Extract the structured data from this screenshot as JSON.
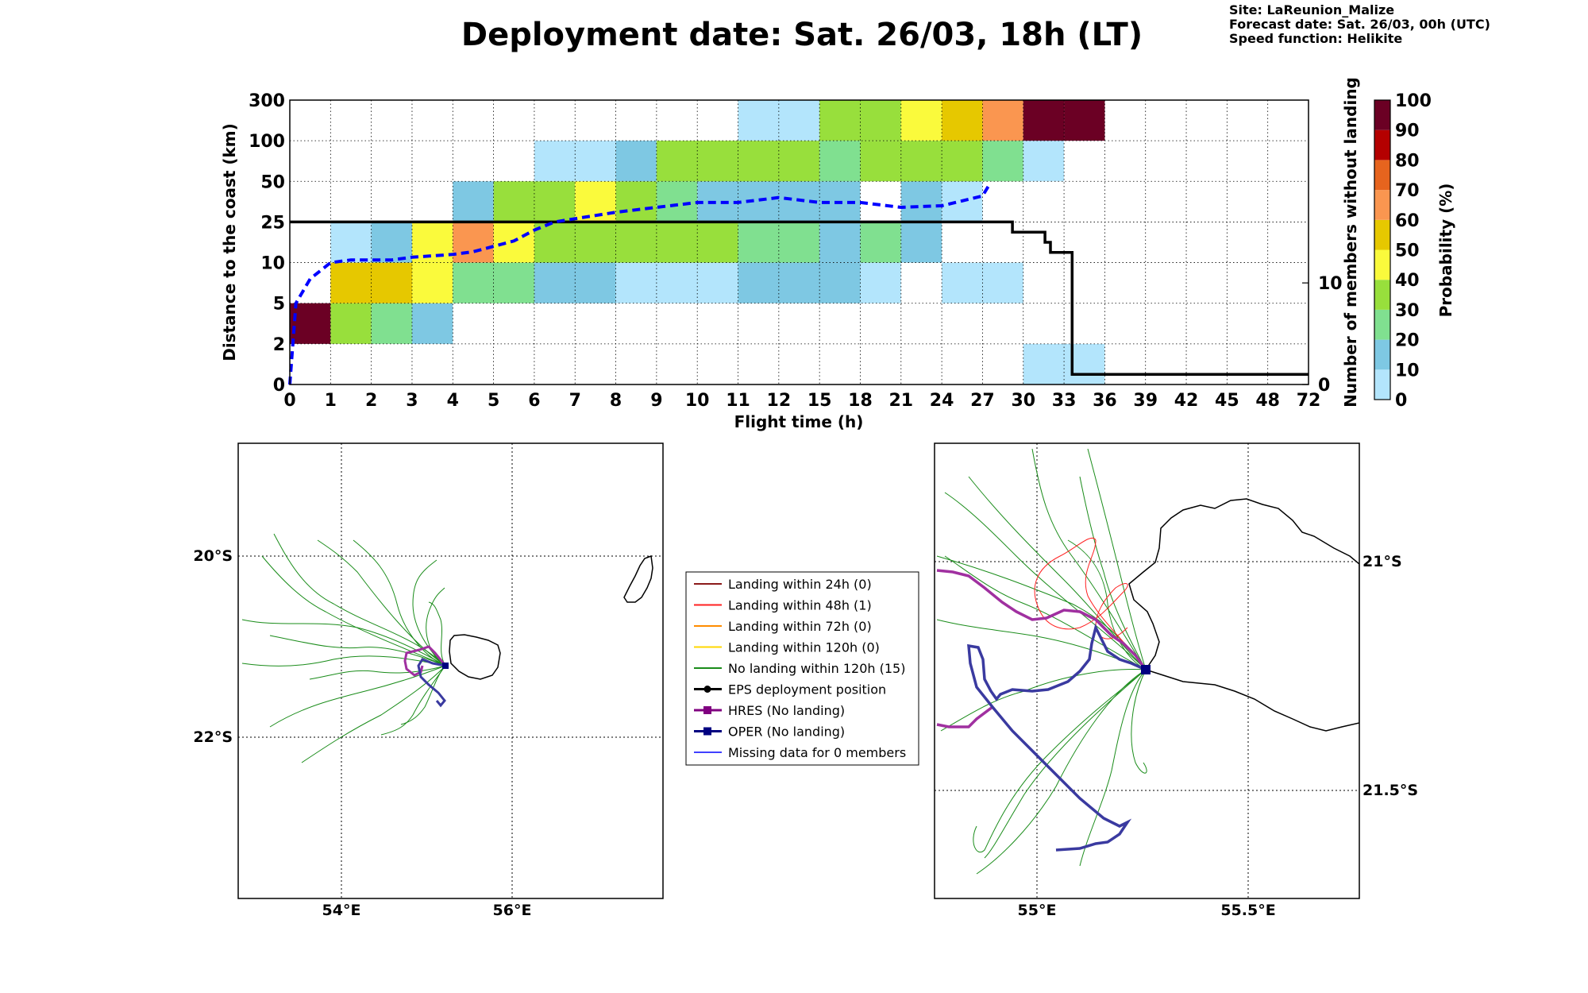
{
  "header": {
    "title": "Deployment date: Sat. 26/03, 18h (LT)",
    "site": "Site: LaReunion_Malize",
    "forecast": "Forecast date: Sat. 26/03, 00h (UTC)",
    "speed": "Speed function: Helikite"
  },
  "chart_data": {
    "type": "heatmap",
    "xlabel": "Flight time (h)",
    "ylabel": "Distance to the coast (km)",
    "y2label": "Number of members without landing",
    "colorbar_label": "Probability (%)",
    "x_ticks": [
      "0",
      "1",
      "2",
      "3",
      "4",
      "5",
      "6",
      "7",
      "8",
      "9",
      "10",
      "11",
      "12",
      "15",
      "18",
      "21",
      "24",
      "27",
      "30",
      "33",
      "36",
      "39",
      "42",
      "45",
      "48",
      "72"
    ],
    "y_ticks": [
      "0",
      "2",
      "5",
      "10",
      "25",
      "50",
      "100",
      "300"
    ],
    "y2_ticks": [
      "0",
      "10"
    ],
    "colorbar_ticks": [
      "0",
      "10",
      "20",
      "30",
      "40",
      "50",
      "60",
      "70",
      "80",
      "90",
      "100"
    ],
    "colorbar_colors": [
      "#b3e5fc",
      "#7ec8e3",
      "#80e090",
      "#98df3c",
      "#fafa3c",
      "#e6c800",
      "#fa9650",
      "#e6641e",
      "#b40000",
      "#6b0024"
    ],
    "grid": true,
    "cells": [
      {
        "x": "0-1",
        "y": "2-5",
        "probability": 100
      },
      {
        "x": "1-2",
        "y": "2-5",
        "probability": 30
      },
      {
        "x": "2-3",
        "y": "2-5",
        "probability": 20
      },
      {
        "x": "3-4",
        "y": "2-5",
        "probability": 10
      },
      {
        "x": "1-3",
        "y": "5-10",
        "probability": 50
      },
      {
        "x": "3-4",
        "y": "5-10",
        "probability": 40
      },
      {
        "x": "4-6",
        "y": "5-10",
        "probability": 20
      },
      {
        "x": "6-8",
        "y": "5-10",
        "probability": 10
      },
      {
        "x": "8-11",
        "y": "5-10",
        "probability": 0
      },
      {
        "x": "11-18",
        "y": "5-10",
        "probability": 10
      },
      {
        "x": "18-21",
        "y": "5-10",
        "probability": 0
      },
      {
        "x": "24-30",
        "y": "5-10",
        "probability": 0
      },
      {
        "x": "1-2",
        "y": "10-25",
        "probability": 0
      },
      {
        "x": "2-3",
        "y": "10-25",
        "probability": 10
      },
      {
        "x": "3-4",
        "y": "10-25",
        "probability": 40
      },
      {
        "x": "4-5",
        "y": "10-25",
        "probability": 60
      },
      {
        "x": "5-6",
        "y": "10-25",
        "probability": 40
      },
      {
        "x": "6-11",
        "y": "10-25",
        "probability": 30
      },
      {
        "x": "11-15",
        "y": "10-25",
        "probability": 20
      },
      {
        "x": "15-18",
        "y": "10-25",
        "probability": 10
      },
      {
        "x": "18-21",
        "y": "10-25",
        "probability": 20
      },
      {
        "x": "21-24",
        "y": "10-25",
        "probability": 10
      },
      {
        "x": "4-5",
        "y": "25-50",
        "probability": 10
      },
      {
        "x": "5-7",
        "y": "25-50",
        "probability": 30
      },
      {
        "x": "7-8",
        "y": "25-50",
        "probability": 40
      },
      {
        "x": "8-9",
        "y": "25-50",
        "probability": 30
      },
      {
        "x": "9-10",
        "y": "25-50",
        "probability": 20
      },
      {
        "x": "10-18",
        "y": "25-50",
        "probability": 10
      },
      {
        "x": "21-24",
        "y": "25-50",
        "probability": 10
      },
      {
        "x": "24-27",
        "y": "25-50",
        "probability": 0
      },
      {
        "x": "6-8",
        "y": "50-100",
        "probability": 0
      },
      {
        "x": "8-9",
        "y": "50-100",
        "probability": 10
      },
      {
        "x": "9-15",
        "y": "50-100",
        "probability": 30
      },
      {
        "x": "15-18",
        "y": "50-100",
        "probability": 20
      },
      {
        "x": "18-27",
        "y": "50-100",
        "probability": 30
      },
      {
        "x": "27-30",
        "y": "50-100",
        "probability": 20
      },
      {
        "x": "30-33",
        "y": "50-100",
        "probability": 0
      },
      {
        "x": "11-15",
        "y": "100-300",
        "probability": 0
      },
      {
        "x": "15-21",
        "y": "100-300",
        "probability": 30
      },
      {
        "x": "21-24",
        "y": "100-300",
        "probability": 40
      },
      {
        "x": "24-27",
        "y": "100-300",
        "probability": 50
      },
      {
        "x": "27-30",
        "y": "100-300",
        "probability": 60
      },
      {
        "x": "30-33",
        "y": "100-300",
        "probability": 90
      },
      {
        "x": "33-36",
        "y": "100-300",
        "probability": 100
      },
      {
        "x": "30-36",
        "y": "0-2",
        "probability": 0
      }
    ],
    "series": [
      {
        "name": "Number of members without landing",
        "style": "black solid step",
        "x": [
          "0",
          "29.2",
          "29.2",
          "31.6",
          "31.6",
          "32",
          "32",
          "33.6",
          "33.6",
          "72"
        ],
        "y": [
          16,
          16,
          15,
          15,
          14,
          14,
          13,
          13,
          1,
          1
        ]
      },
      {
        "style": "blue dashed",
        "x": [
          "0",
          "0.15",
          "0.5",
          "1",
          "1.5",
          "2",
          "2.5",
          "3",
          "4",
          "4.5",
          "5",
          "5.5",
          "6",
          "6.5",
          "7",
          "8",
          "9",
          "10",
          "11",
          "12",
          "15",
          "18",
          "21",
          "24",
          "27",
          "27.5"
        ],
        "y_km": [
          0,
          5,
          8,
          10,
          11,
          11,
          11,
          12,
          13,
          14,
          16,
          18,
          22,
          25,
          27,
          31,
          34,
          37,
          37,
          40,
          37,
          37,
          34,
          35,
          41,
          48
        ]
      }
    ]
  },
  "legend": {
    "items": [
      {
        "label": "Landing within 24h (0)",
        "color": "#8b1a1a",
        "marker": ""
      },
      {
        "label": "Landing within 48h (1)",
        "color": "#ff2020",
        "marker": ""
      },
      {
        "label": "Landing within 72h (0)",
        "color": "#ff8c00",
        "marker": ""
      },
      {
        "label": "Landing within 120h (0)",
        "color": "#ffd700",
        "marker": ""
      },
      {
        "label": "No landing within 120h (15)",
        "color": "#1a8c1a",
        "marker": ""
      },
      {
        "label": "EPS deployment position",
        "color": "#000000",
        "marker": "circle"
      },
      {
        "label": "HRES (No landing)",
        "color": "#800080",
        "marker": "square"
      },
      {
        "label": "OPER (No landing)",
        "color": "#000080",
        "marker": "square"
      },
      {
        "label": "Missing data for 0 members",
        "color": "#4040ff",
        "marker": ""
      }
    ]
  },
  "map_left": {
    "lat_ticks": [
      "20°S",
      "22°S"
    ],
    "lon_ticks": [
      "54°E",
      "56°E"
    ]
  },
  "map_right": {
    "lat_ticks": [
      "21°S",
      "21.5°S"
    ],
    "lon_ticks": [
      "55°E",
      "55.5°E"
    ]
  }
}
